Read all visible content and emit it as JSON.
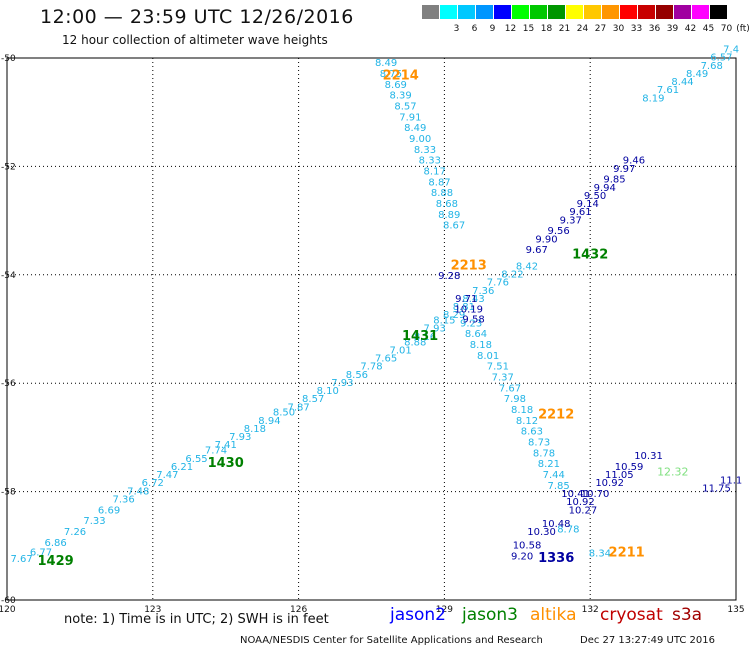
{
  "header": {
    "title": "12:00 — 23:59 UTC 12/26/2016",
    "subtitle": "12 hour collection of altimeter wave heights"
  },
  "legend": {
    "unit": "(ft)",
    "bins": [
      {
        "label": "",
        "color": "#808080"
      },
      {
        "label": "3",
        "color": "#00ffff"
      },
      {
        "label": "6",
        "color": "#00c8ff"
      },
      {
        "label": "9",
        "color": "#0096ff"
      },
      {
        "label": "12",
        "color": "#0000ff"
      },
      {
        "label": "15",
        "color": "#00ff00"
      },
      {
        "label": "18",
        "color": "#00c800"
      },
      {
        "label": "21",
        "color": "#009600"
      },
      {
        "label": "24",
        "color": "#ffff00"
      },
      {
        "label": "27",
        "color": "#ffc800"
      },
      {
        "label": "30",
        "color": "#ff9600"
      },
      {
        "label": "33",
        "color": "#ff0000"
      },
      {
        "label": "36",
        "color": "#c80000"
      },
      {
        "label": "39",
        "color": "#960000"
      },
      {
        "label": "42",
        "color": "#a000a0"
      },
      {
        "label": "45",
        "color": "#ff00ff"
      },
      {
        "label": "70",
        "color": "#000000"
      }
    ]
  },
  "map": {
    "lon_range": [
      120,
      135
    ],
    "lat_range": [
      -60,
      -50
    ],
    "lon_ticks": [
      "120",
      "123",
      "126",
      "129",
      "132",
      "135"
    ],
    "lat_ticks": [
      "-50",
      "-52",
      "-54",
      "-56",
      "-58",
      "-60"
    ],
    "grid": true,
    "colors": {
      "cyan": "#22b4e6",
      "navy": "#0000a0",
      "green": "#008000",
      "orange": "#ff9000",
      "lightgreen": "#80e080"
    }
  },
  "tracks": [
    {
      "color": "cyan",
      "points": [
        [
          120.3,
          -59.3,
          "7.67"
        ],
        [
          120.7,
          -59.18,
          "6.77"
        ],
        [
          121.0,
          -59.0,
          "6.86"
        ],
        [
          121.4,
          -58.8,
          "7.26"
        ],
        [
          121.8,
          -58.6,
          "7.33"
        ],
        [
          122.1,
          -58.4,
          "6.69"
        ],
        [
          122.4,
          -58.2,
          "7.36"
        ],
        [
          122.7,
          -58.05,
          "7.48"
        ],
        [
          123.0,
          -57.9,
          "6.72"
        ],
        [
          123.3,
          -57.75,
          "7.47"
        ],
        [
          123.6,
          -57.6,
          "6.21"
        ],
        [
          123.9,
          -57.45,
          "6.55"
        ],
        [
          124.3,
          -57.3,
          "7.74"
        ],
        [
          124.5,
          -57.2,
          "7.41"
        ],
        [
          124.8,
          -57.05,
          "7.93"
        ],
        [
          125.1,
          -56.9,
          "8.18"
        ],
        [
          125.4,
          -56.75,
          "8.94"
        ],
        [
          125.7,
          -56.6,
          "8.50"
        ],
        [
          126.0,
          -56.5,
          "7.87"
        ],
        [
          126.3,
          -56.35,
          "8.57"
        ],
        [
          126.6,
          -56.2,
          "8.10"
        ],
        [
          126.9,
          -56.05,
          "7.93"
        ],
        [
          127.2,
          -55.9,
          "8.56"
        ],
        [
          127.5,
          -55.75,
          "7.78"
        ],
        [
          127.8,
          -55.6,
          "7.65"
        ],
        [
          128.1,
          -55.45,
          "7.01"
        ],
        [
          128.4,
          -55.3,
          "8.88"
        ],
        [
          128.6,
          -55.2,
          "8.16"
        ],
        [
          128.8,
          -55.05,
          "7.93"
        ],
        [
          129.0,
          -54.9,
          "8.15"
        ],
        [
          129.2,
          -54.8,
          "8.29"
        ],
        [
          129.4,
          -54.65,
          "8.81"
        ],
        [
          129.6,
          -54.5,
          "8.43"
        ],
        [
          129.8,
          -54.35,
          "7.36"
        ],
        [
          130.1,
          -54.2,
          "7.76"
        ],
        [
          130.4,
          -54.05,
          "8.22"
        ],
        [
          130.7,
          -53.9,
          "8.42"
        ],
        [
          133.3,
          -50.8,
          "8.19"
        ],
        [
          133.6,
          -50.65,
          "7.61"
        ],
        [
          133.9,
          -50.5,
          "8.44"
        ],
        [
          134.2,
          -50.35,
          "8.49"
        ],
        [
          134.5,
          -50.2,
          "7.68"
        ],
        [
          134.7,
          -50.05,
          "6.57"
        ],
        [
          134.9,
          -49.9,
          "7.4"
        ],
        [
          127.8,
          -50.15,
          "8.49"
        ],
        [
          127.9,
          -50.35,
          "8.75"
        ],
        [
          128.0,
          -50.55,
          "8.69"
        ],
        [
          128.1,
          -50.75,
          "8.39"
        ],
        [
          128.2,
          -50.95,
          "8.57"
        ],
        [
          128.3,
          -51.15,
          "7.91"
        ],
        [
          128.4,
          -51.35,
          "8.49"
        ],
        [
          128.5,
          -51.55,
          "9.00"
        ],
        [
          128.6,
          -51.75,
          "8.33"
        ],
        [
          128.7,
          -51.95,
          "8.33"
        ],
        [
          128.8,
          -52.15,
          "8.17"
        ],
        [
          128.9,
          -52.35,
          "8.87"
        ],
        [
          128.95,
          -52.55,
          "8.88"
        ],
        [
          129.05,
          -52.75,
          "8.68"
        ],
        [
          129.1,
          -52.95,
          "8.89"
        ],
        [
          129.2,
          -53.15,
          "8.67"
        ],
        [
          129.55,
          -54.95,
          "9.23"
        ],
        [
          129.65,
          -55.15,
          "8.64"
        ],
        [
          129.75,
          -55.35,
          "8.18"
        ],
        [
          129.9,
          -55.55,
          "8.01"
        ],
        [
          130.1,
          -55.75,
          "7.51"
        ],
        [
          130.2,
          -55.95,
          "7.37"
        ],
        [
          130.35,
          -56.15,
          "7.67"
        ],
        [
          130.45,
          -56.35,
          "7.98"
        ],
        [
          130.6,
          -56.55,
          "8.18"
        ],
        [
          130.7,
          -56.75,
          "8.12"
        ],
        [
          130.8,
          -56.95,
          "8.63"
        ],
        [
          130.95,
          -57.15,
          "8.73"
        ],
        [
          131.05,
          -57.35,
          "8.78"
        ],
        [
          131.15,
          -57.55,
          "8.21"
        ],
        [
          131.25,
          -57.75,
          "7.44"
        ],
        [
          131.35,
          -57.95,
          "7.85"
        ],
        [
          131.55,
          -58.75,
          "8.78"
        ],
        [
          132.2,
          -59.2,
          "8.34"
        ]
      ]
    },
    {
      "color": "navy",
      "points": [
        [
          129.1,
          -54.08,
          "9.28"
        ],
        [
          129.45,
          -54.5,
          "9.71"
        ],
        [
          129.5,
          -54.7,
          "10.19"
        ],
        [
          129.6,
          -54.88,
          "9.58"
        ],
        [
          130.9,
          -53.6,
          "9.67"
        ],
        [
          131.1,
          -53.4,
          "9.90"
        ],
        [
          131.35,
          -53.25,
          "9.56"
        ],
        [
          131.6,
          -53.05,
          "9.37"
        ],
        [
          131.8,
          -52.9,
          "9.61"
        ],
        [
          131.95,
          -52.75,
          "9.14"
        ],
        [
          132.1,
          -52.6,
          "9.50"
        ],
        [
          132.3,
          -52.45,
          "9.94"
        ],
        [
          132.5,
          -52.3,
          "9.85"
        ],
        [
          132.7,
          -52.1,
          "9.97"
        ],
        [
          132.9,
          -51.95,
          "9.46"
        ],
        [
          131.7,
          -58.1,
          "10.41"
        ],
        [
          131.8,
          -58.25,
          "10.92"
        ],
        [
          131.85,
          -58.4,
          "10.27"
        ],
        [
          132.1,
          -58.1,
          "10.70"
        ],
        [
          132.4,
          -57.9,
          "10.92"
        ],
        [
          132.6,
          -57.75,
          "11.05"
        ],
        [
          132.8,
          -57.6,
          "10.59"
        ],
        [
          133.2,
          -57.4,
          "10.31"
        ],
        [
          134.6,
          -58.0,
          "11.75"
        ],
        [
          134.9,
          -57.85,
          "11.1"
        ],
        [
          131.3,
          -58.65,
          "10.48"
        ],
        [
          131.0,
          -58.8,
          "10.30"
        ],
        [
          130.7,
          -59.05,
          "10.58"
        ],
        [
          130.6,
          -59.25,
          "9.20"
        ]
      ]
    }
  ],
  "pass_labels": [
    {
      "text": "2214",
      "lon": 128.1,
      "lat": -50.4,
      "color": "orange"
    },
    {
      "text": "2213",
      "lon": 129.5,
      "lat": -53.9,
      "color": "orange"
    },
    {
      "text": "2212",
      "lon": 131.3,
      "lat": -56.65,
      "color": "orange"
    },
    {
      "text": "2211",
      "lon": 132.75,
      "lat": -59.2,
      "color": "orange"
    },
    {
      "text": "1432",
      "lon": 132.0,
      "lat": -53.7,
      "color": "green"
    },
    {
      "text": "1431",
      "lon": 128.5,
      "lat": -55.2,
      "color": "green"
    },
    {
      "text": "1430",
      "lon": 124.5,
      "lat": -57.55,
      "color": "green"
    },
    {
      "text": "1429",
      "lon": 121.0,
      "lat": -59.35,
      "color": "green"
    },
    {
      "text": "1336",
      "lon": 131.3,
      "lat": -59.3,
      "color": "navy"
    },
    {
      "text": "12.32",
      "lon": 133.7,
      "lat": -57.7,
      "color": "lightgreen"
    }
  ],
  "footer": {
    "note": "note: 1) Time is in UTC; 2) SWH is in feet",
    "satellites": [
      {
        "name": "jason2",
        "color": "#0000ff"
      },
      {
        "name": "jason3",
        "color": "#008000"
      },
      {
        "name": "altika",
        "color": "#ff9000"
      },
      {
        "name": "cryosat",
        "color": "#c00000"
      },
      {
        "name": "s3a",
        "color": "#a00000"
      }
    ],
    "credit": "NOAA/NESDIS Center for Satellite Applications and Research",
    "timestamp": "Dec 27 13:27:49 UTC 2016"
  }
}
